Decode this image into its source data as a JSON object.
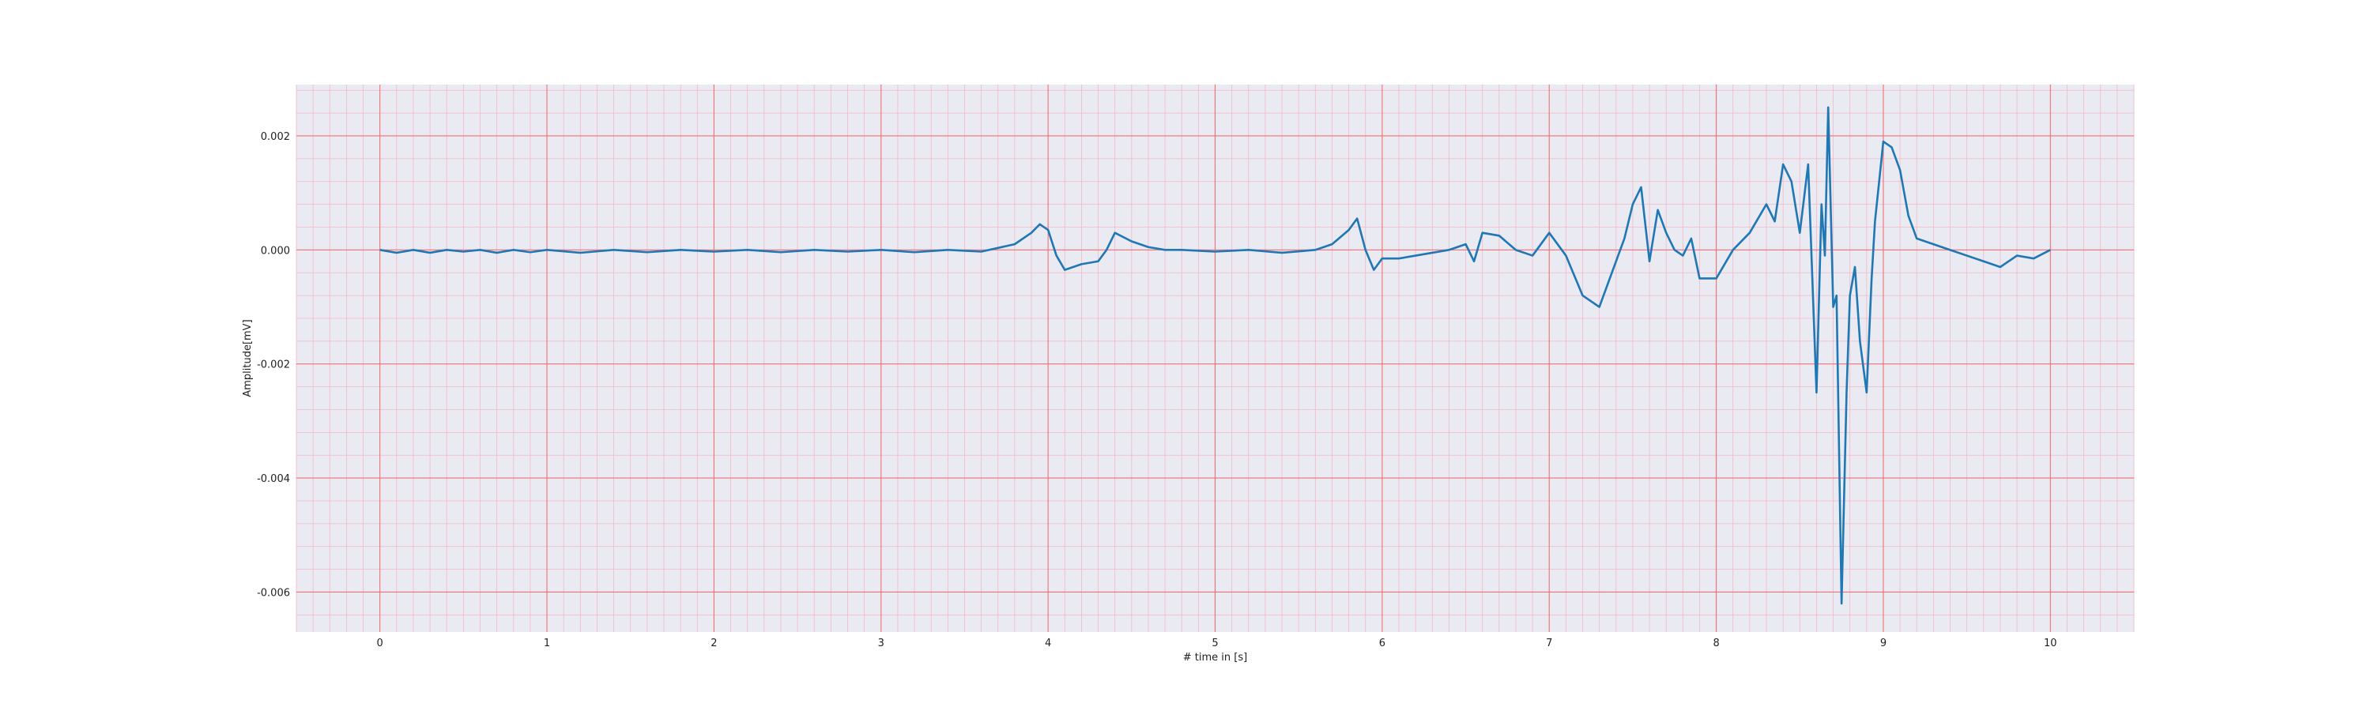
{
  "chart_data": {
    "type": "line",
    "title": "",
    "xlabel": "# time in [s]",
    "ylabel": "Amplitude[mV]",
    "xlim": [
      -0.5,
      10.5
    ],
    "ylim": [
      -0.0067,
      0.0029
    ],
    "xticks": [
      0,
      1,
      2,
      3,
      4,
      5,
      6,
      7,
      8,
      9,
      10
    ],
    "xtick_labels": [
      "0",
      "1",
      "2",
      "3",
      "4",
      "5",
      "6",
      "7",
      "8",
      "9",
      "10"
    ],
    "yticks": [
      0.002,
      0.0,
      -0.002,
      -0.004,
      -0.006
    ],
    "ytick_labels": [
      "0.002",
      "0.000",
      "-0.002",
      "-0.004",
      "-0.006"
    ],
    "grid": true,
    "minor_grid": true,
    "legend": "none",
    "colors": {
      "plot_background": "#eaeaf2",
      "major_grid": "#f07070",
      "minor_grid": "#f4b8c4",
      "line": "#1f77b4"
    },
    "series": [
      {
        "x": [
          0,
          0.1,
          0.2,
          0.3,
          0.4,
          0.5,
          0.6,
          0.7,
          0.8,
          0.9,
          1.0,
          1.2,
          1.4,
          1.6,
          1.8,
          2.0,
          2.2,
          2.4,
          2.6,
          2.8,
          3.0,
          3.2,
          3.4,
          3.6,
          3.8,
          3.9,
          3.95,
          4.0,
          4.05,
          4.1,
          4.2,
          4.3,
          4.35,
          4.4,
          4.5,
          4.6,
          4.7,
          4.8,
          5.0,
          5.2,
          5.4,
          5.6,
          5.7,
          5.8,
          5.85,
          5.9,
          5.95,
          6.0,
          6.1,
          6.2,
          6.3,
          6.4,
          6.5,
          6.55,
          6.6,
          6.7,
          6.8,
          6.9,
          7.0,
          7.1,
          7.2,
          7.3,
          7.35,
          7.4,
          7.45,
          7.5,
          7.55,
          7.6,
          7.65,
          7.7,
          7.75,
          7.8,
          7.85,
          7.9,
          8.0,
          8.1,
          8.2,
          8.3,
          8.35,
          8.4,
          8.45,
          8.5,
          8.55,
          8.6,
          8.63,
          8.65,
          8.67,
          8.7,
          8.72,
          8.75,
          8.78,
          8.8,
          8.83,
          8.86,
          8.9,
          8.93,
          8.95,
          9.0,
          9.05,
          9.1,
          9.15,
          9.2,
          9.3,
          9.4,
          9.5,
          9.6,
          9.7,
          9.8,
          9.9,
          10.0
        ],
        "y": [
          0.0,
          -5e-05,
          0.0,
          -5e-05,
          0.0,
          -3e-05,
          0.0,
          -5e-05,
          0.0,
          -4e-05,
          0.0,
          -5e-05,
          0.0,
          -4e-05,
          0.0,
          -3e-05,
          0.0,
          -4e-05,
          0.0,
          -3e-05,
          0.0,
          -4e-05,
          0.0,
          -3e-05,
          0.0001,
          0.0003,
          0.00045,
          0.00035,
          -0.0001,
          -0.00035,
          -0.00025,
          -0.0002,
          0.0,
          0.0003,
          0.00015,
          5e-05,
          0.0,
          0.0,
          -3e-05,
          0.0,
          -5e-05,
          0.0,
          0.0001,
          0.00035,
          0.00055,
          0.0,
          -0.00035,
          -0.00015,
          -0.00015,
          -0.0001,
          -5e-05,
          0.0,
          0.0001,
          -0.0002,
          0.0003,
          0.00025,
          0.0,
          -0.0001,
          0.0003,
          -0.0001,
          -0.0008,
          -0.001,
          -0.0006,
          -0.0002,
          0.0002,
          0.0008,
          0.0011,
          -0.0002,
          0.0007,
          0.0003,
          0.0,
          -0.0001,
          0.0002,
          -0.0005,
          -0.0005,
          0.0,
          0.0003,
          0.0008,
          0.0005,
          0.0015,
          0.0012,
          0.0003,
          0.0015,
          -0.0025,
          0.0008,
          -0.0001,
          0.0025,
          -0.001,
          -0.0008,
          -0.0062,
          -0.0025,
          -0.0008,
          -0.0003,
          -0.0016,
          -0.0025,
          -0.0005,
          0.0005,
          0.0019,
          0.0018,
          0.0014,
          0.0006,
          0.0002,
          0.0001,
          0.0,
          -0.0001,
          -0.0002,
          -0.0003,
          -0.0001,
          -0.00015,
          0.0
        ]
      }
    ]
  }
}
